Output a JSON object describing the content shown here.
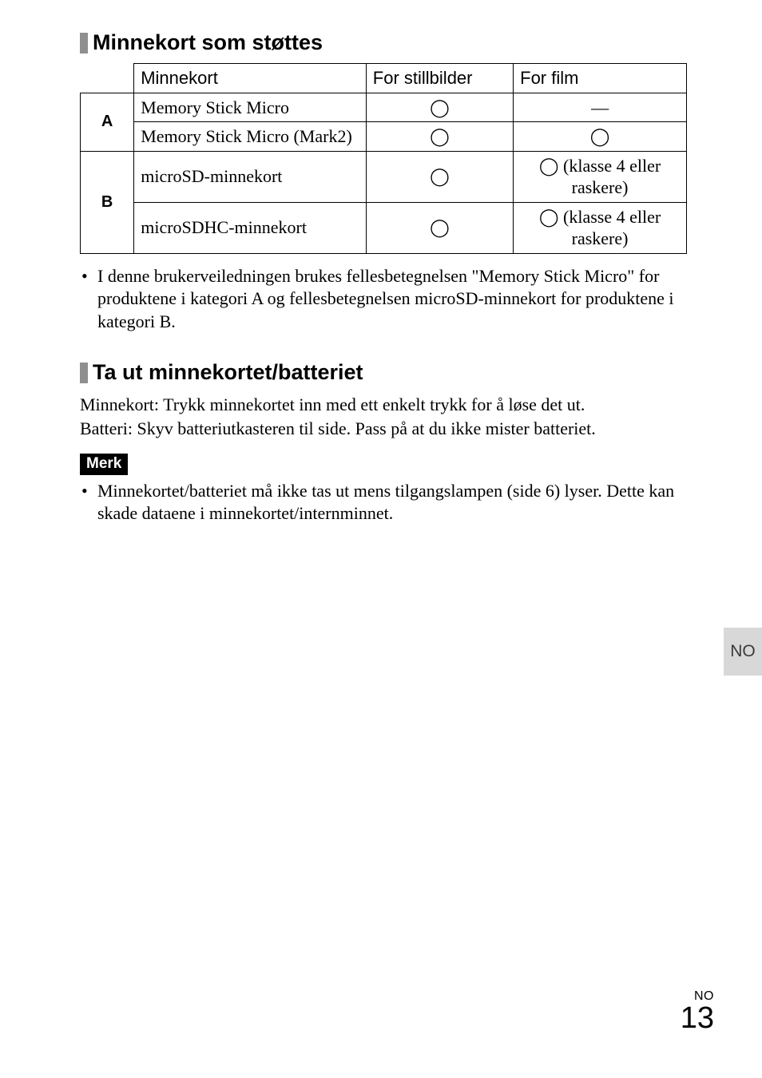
{
  "section1": {
    "title": "Minnekort som støttes",
    "table": {
      "headers": {
        "card": "Minnekort",
        "still": "For stillbilder",
        "film": "For film"
      },
      "groups": [
        {
          "label": "A",
          "rows": [
            {
              "name": "Memory Stick Micro",
              "still": "◯",
              "film": "—"
            },
            {
              "name": "Memory Stick Micro (Mark2)",
              "still": "◯",
              "film": "◯"
            }
          ]
        },
        {
          "label": "B",
          "rows": [
            {
              "name": "microSD-minnekort",
              "still": "◯",
              "film": "◯ (klasse 4 eller raskere)"
            },
            {
              "name": "microSDHC-minnekort",
              "still": "◯",
              "film": "◯ (klasse 4 eller raskere)"
            }
          ]
        }
      ]
    },
    "note": "I denne brukerveiledningen brukes fellesbetegnelsen \"Memory Stick Micro\" for produktene i kategori A og fellesbetegnelsen microSD-minnekort for produktene i kategori B."
  },
  "section2": {
    "title": "Ta ut minnekortet/batteriet",
    "p1": "Minnekort: Trykk minnekortet inn med ett enkelt trykk for å løse det ut.",
    "p2": "Batteri: Skyv batteriutkasteren til side. Pass på at du ikke mister batteriet.",
    "note_label": "Merk",
    "note": "Minnekortet/batteriet må ikke tas ut mens tilgangslampen (side 6) lyser. Dette kan skade dataene i minnekortet/internminnet."
  },
  "side_tab": "NO",
  "page": {
    "lang": "NO",
    "num": "13"
  },
  "style": {
    "heading_fontsize": 27,
    "body_fontsize": 22,
    "table_border_color": "#000000",
    "bar_color": "#8f8f8f",
    "side_tab_bg": "#d8d8d8",
    "badge_bg": "#000000",
    "badge_fg": "#ffffff",
    "page_bg": "#ffffff"
  }
}
